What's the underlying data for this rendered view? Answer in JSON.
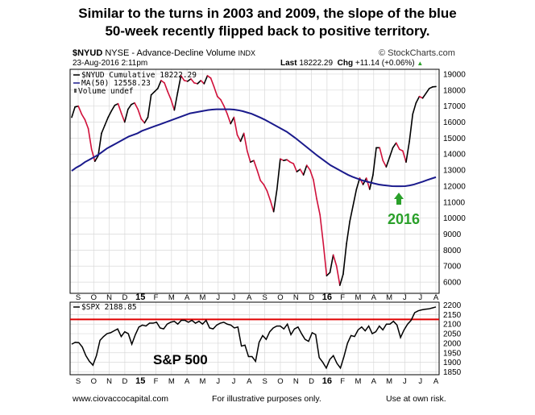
{
  "headline": {
    "line1": "Similar to the turns in 2003 and 2009, the slope of the blue",
    "line2": "50-week recently flipped back to positive territory."
  },
  "header": {
    "symbol": "$NYUD",
    "exchange": "NYSE",
    "description": "Advance-Decline Volume",
    "source": "INDX",
    "date": "23-Aug-2016 2:11pm",
    "brand": "© StockCharts.com",
    "last_label": "Last",
    "last_value": "18222.29",
    "chg_label": "Chg",
    "chg_value": "+11.14 (+0.06%)"
  },
  "legend_top": {
    "series1": "$NYUD Cumulative 18222.29",
    "series2": "MA(50) 12558.23",
    "series3": "Volume undef"
  },
  "legend_bottom": {
    "series1": "$SPX 2188.85"
  },
  "annotations": {
    "year_label": "2016",
    "sp_label": "S&P 500"
  },
  "footer": {
    "left": "www.ciovaccocapital.com",
    "center": "For illustrative purposes only.",
    "right": "Use at own risk."
  },
  "colors": {
    "line_up": "#000000",
    "line_down": "#d0103a",
    "ma": "#1a1a8c",
    "hline": "#e00000",
    "annotation": "#2aa02a",
    "grid": "#d9d9d9"
  },
  "chart_data": [
    {
      "type": "line",
      "title": "$NYUD NYSE - Advance-Decline Volume INDX",
      "x_labels": [
        "S",
        "O",
        "N",
        "D",
        "15",
        "F",
        "M",
        "A",
        "M",
        "J",
        "J",
        "A",
        "S",
        "O",
        "N",
        "D",
        "16",
        "F",
        "M",
        "A",
        "M",
        "J",
        "J",
        "A"
      ],
      "y_ticks": [
        6000,
        7000,
        8000,
        9000,
        10000,
        11000,
        12000,
        13000,
        14000,
        15000,
        16000,
        17000,
        18000,
        19000
      ],
      "ylim": [
        5300,
        19300
      ],
      "series": [
        {
          "name": "$NYUD Cumulative",
          "values": [
            16300,
            16950,
            17000,
            16500,
            16150,
            15600,
            14300,
            13550,
            13900,
            15300,
            15800,
            16300,
            16700,
            17050,
            17150,
            16550,
            16000,
            16800,
            17100,
            17200,
            16800,
            16200,
            15950,
            16300,
            17700,
            17900,
            18100,
            18600,
            18450,
            17900,
            17400,
            16750,
            17850,
            18900,
            18600,
            18550,
            18700,
            18450,
            18400,
            18600,
            18400,
            18900,
            18750,
            18200,
            17600,
            17400,
            17000,
            16500,
            15900,
            16300,
            15200,
            14800,
            15300,
            14200,
            13500,
            13600,
            13000,
            12350,
            12100,
            11700,
            11100,
            10400,
            11800,
            13700,
            13600,
            13650,
            13500,
            13400,
            12900,
            13050,
            12700,
            13300,
            13000,
            12400,
            11200,
            10200,
            8400,
            6400,
            6600,
            7700,
            7000,
            5800,
            6500,
            8400,
            9800,
            10800,
            11800,
            12500,
            12100,
            12500,
            11800,
            12700,
            14400,
            14400,
            13600,
            13200,
            13800,
            14400,
            14700,
            14300,
            14200,
            13500,
            14800,
            16500,
            17200,
            17600,
            17500,
            17800,
            18100,
            18200,
            18222
          ]
        },
        {
          "name": "MA(50)",
          "values": [
            12950,
            13150,
            13300,
            13500,
            13650,
            13800,
            13950,
            14150,
            14350,
            14500,
            14650,
            14800,
            14950,
            15100,
            15200,
            15300,
            15450,
            15550,
            15650,
            15750,
            15850,
            15950,
            16050,
            16150,
            16250,
            16350,
            16450,
            16550,
            16600,
            16650,
            16700,
            16750,
            16780,
            16800,
            16800,
            16800,
            16800,
            16780,
            16740,
            16680,
            16600,
            16520,
            16400,
            16280,
            16150,
            16000,
            15850,
            15700,
            15550,
            15400,
            15200,
            15000,
            14780,
            14560,
            14340,
            14120,
            13900,
            13700,
            13500,
            13300,
            13150,
            13000,
            12850,
            12700,
            12580,
            12480,
            12380,
            12300,
            12230,
            12160,
            12100,
            12060,
            12030,
            12000,
            11990,
            11990,
            12000,
            12040,
            12100,
            12190,
            12280,
            12380,
            12470,
            12558
          ]
        }
      ]
    },
    {
      "type": "line",
      "title": "$SPX",
      "x_labels": [
        "S",
        "O",
        "N",
        "D",
        "15",
        "F",
        "M",
        "A",
        "M",
        "J",
        "J",
        "A",
        "S",
        "O",
        "N",
        "D",
        "16",
        "F",
        "M",
        "A",
        "M",
        "J",
        "J",
        "A"
      ],
      "y_ticks": [
        1850,
        1900,
        1950,
        2000,
        2050,
        2100,
        2150,
        2200
      ],
      "ylim": [
        1835,
        2215
      ],
      "reference_line": 2125,
      "series": [
        {
          "name": "$SPX",
          "values": [
            1995,
            2005,
            2003,
            1980,
            1935,
            1905,
            1885,
            1935,
            2015,
            2035,
            2050,
            2055,
            2065,
            2075,
            2035,
            2060,
            2050,
            1995,
            2045,
            2085,
            2095,
            2090,
            2105,
            2105,
            2110,
            2080,
            2075,
            2100,
            2110,
            2115,
            2100,
            2120,
            2120,
            2110,
            2120,
            2105,
            2115,
            2100,
            2120,
            2080,
            2075,
            2095,
            2105,
            2110,
            2100,
            2095,
            2080,
            2085,
            1985,
            1990,
            1930,
            1930,
            1905,
            2005,
            2040,
            2020,
            2060,
            2080,
            2090,
            2090,
            2075,
            2100,
            2045,
            2075,
            2085,
            2050,
            2020,
            2010,
            2055,
            2045,
            1925,
            1900,
            1870,
            1915,
            1935,
            1895,
            1870,
            1930,
            2000,
            2040,
            2035,
            2070,
            2085,
            2065,
            2090,
            2050,
            2060,
            2090,
            2070,
            2100,
            2100,
            2115,
            2095,
            2030,
            2070,
            2100,
            2120,
            2160,
            2170,
            2175,
            2178,
            2180,
            2185,
            2190
          ]
        }
      ]
    }
  ]
}
